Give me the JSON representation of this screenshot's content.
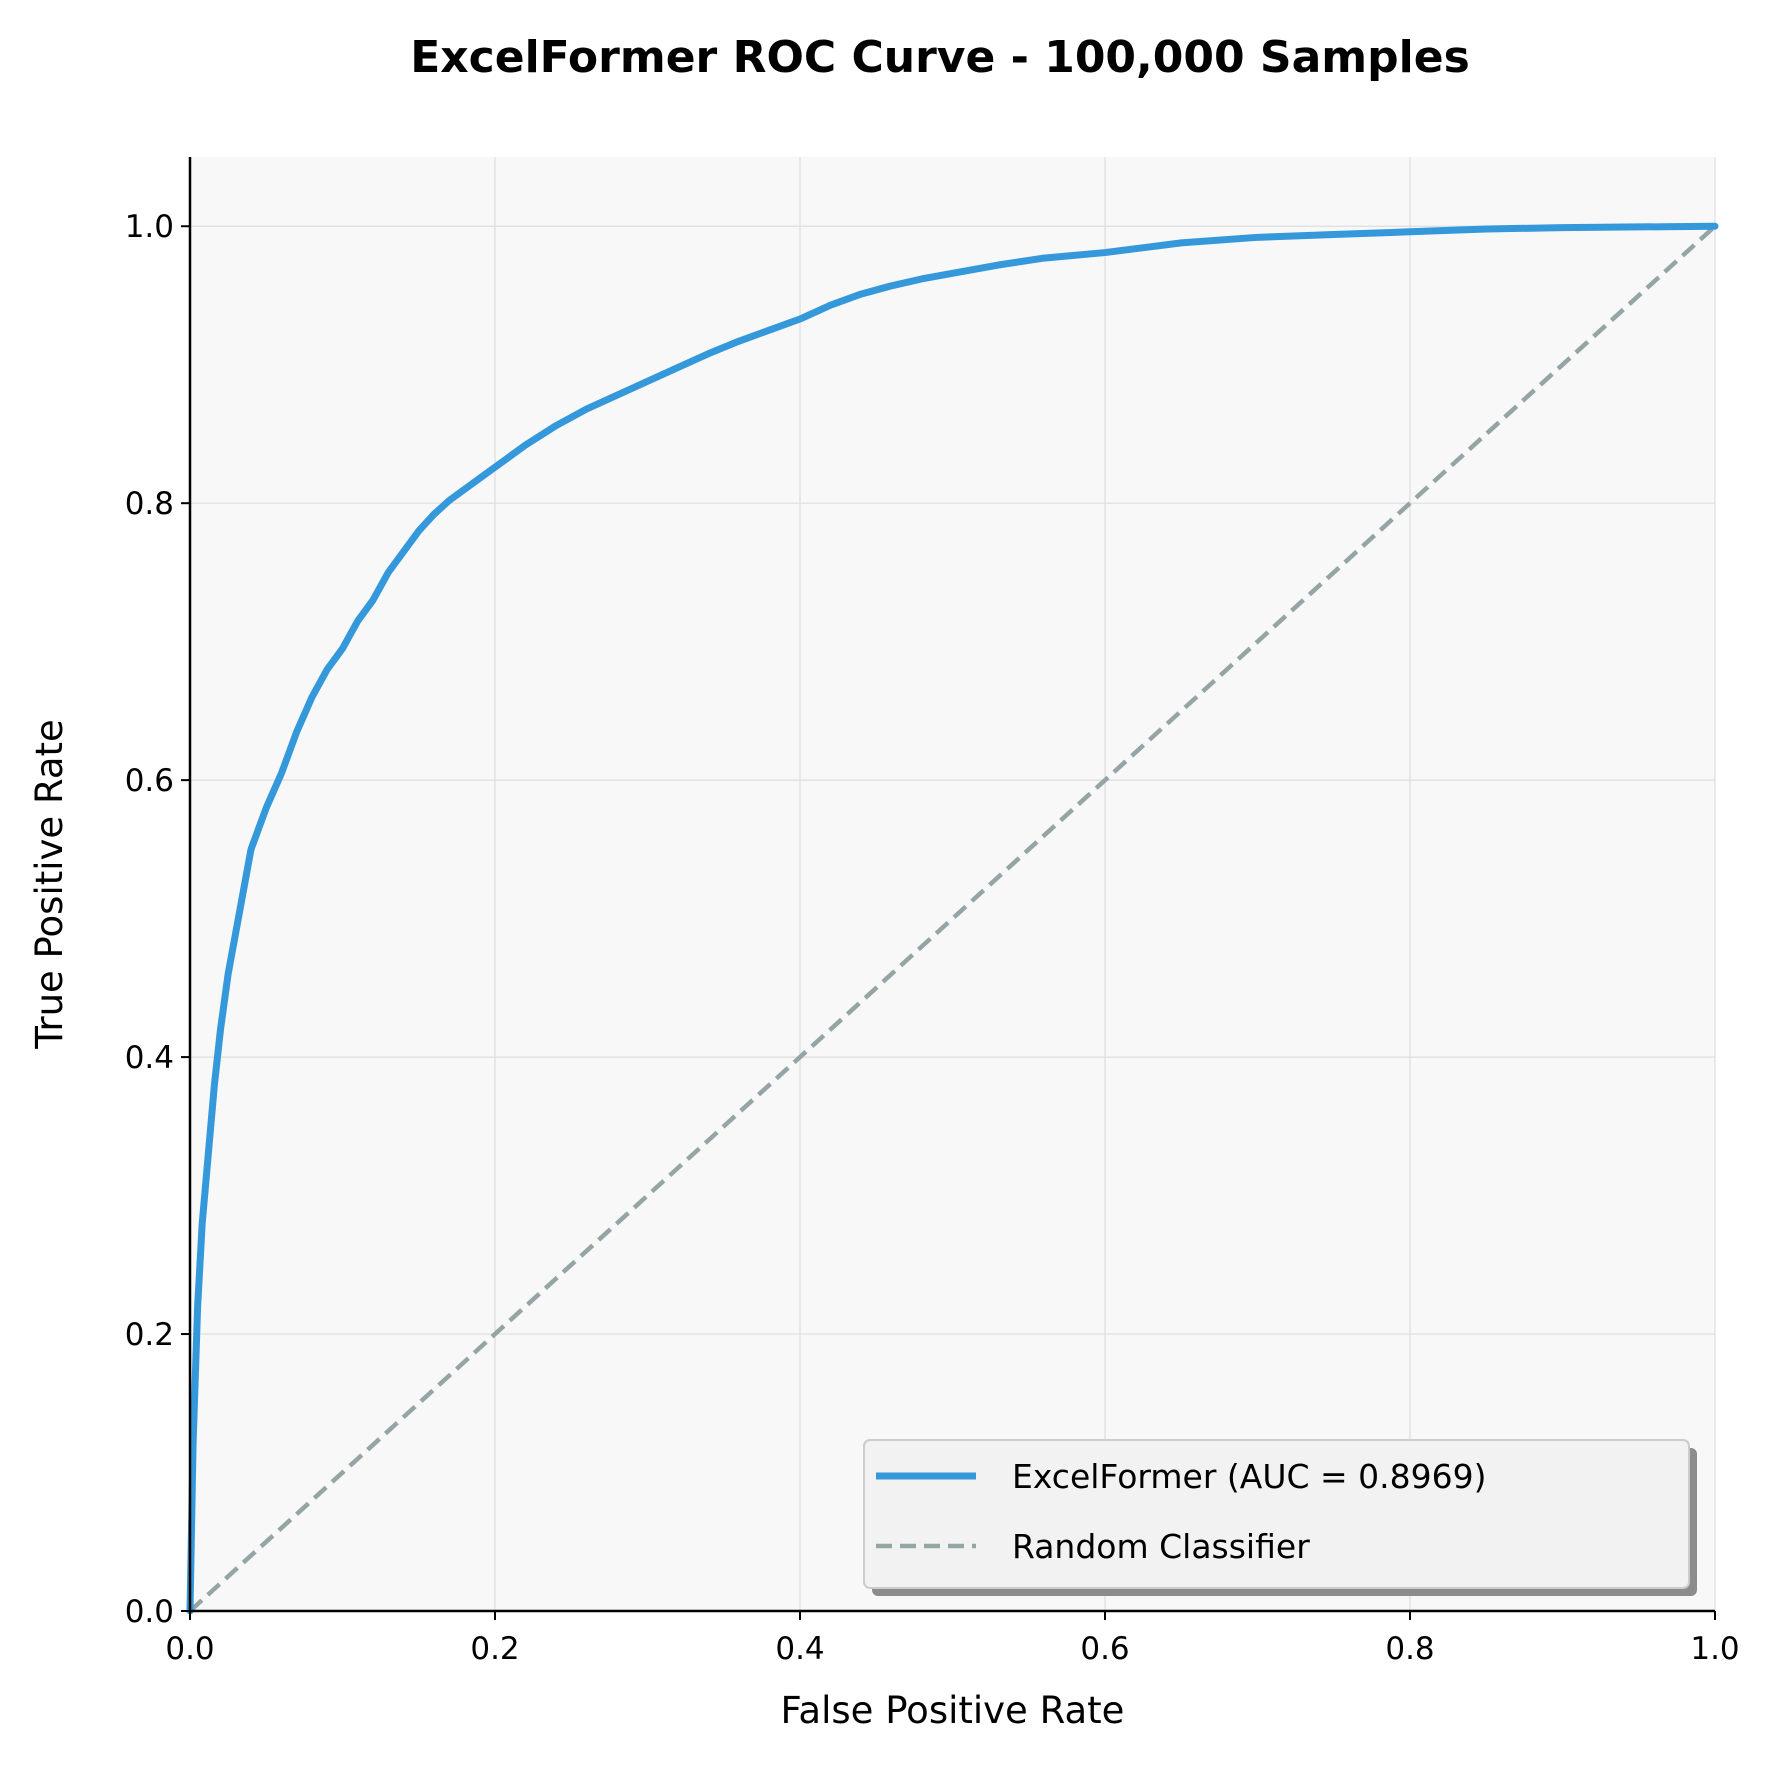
{
  "chart_data": {
    "type": "line",
    "title": "ExcelFormer ROC Curve - 100,000 Samples",
    "xlabel": "False Positive Rate",
    "ylabel": "True Positive Rate",
    "xlim": [
      0,
      1
    ],
    "ylim": [
      0,
      1.05
    ],
    "xticks": [
      0,
      0.2,
      0.4,
      0.6,
      0.8,
      1.0
    ],
    "xtick_labels": [
      "0.0",
      "0.2",
      "0.4",
      "0.6",
      "0.8",
      "1.0"
    ],
    "yticks": [
      0,
      0.2,
      0.4,
      0.6,
      0.8,
      1.0
    ],
    "ytick_labels": [
      "0.0",
      "0.2",
      "0.4",
      "0.6",
      "0.8",
      "1.0"
    ],
    "grid": true,
    "legend_position": "lower-right",
    "series": [
      {
        "name": "ExcelFormer (AUC = 0.8969)",
        "color": "#3498db",
        "style": "solid",
        "x": [
          0,
          0.002,
          0.005,
          0.008,
          0.012,
          0.016,
          0.02,
          0.025,
          0.03,
          0.035,
          0.04,
          0.05,
          0.06,
          0.07,
          0.08,
          0.09,
          0.1,
          0.11,
          0.12,
          0.13,
          0.14,
          0.15,
          0.16,
          0.17,
          0.18,
          0.2,
          0.22,
          0.24,
          0.26,
          0.28,
          0.3,
          0.32,
          0.34,
          0.36,
          0.38,
          0.4,
          0.42,
          0.44,
          0.46,
          0.48,
          0.5,
          0.53,
          0.56,
          0.6,
          0.65,
          0.7,
          0.75,
          0.8,
          0.85,
          0.9,
          0.95,
          1.0
        ],
        "y": [
          0,
          0.12,
          0.22,
          0.28,
          0.33,
          0.38,
          0.42,
          0.46,
          0.49,
          0.52,
          0.55,
          0.58,
          0.605,
          0.635,
          0.66,
          0.68,
          0.695,
          0.715,
          0.73,
          0.75,
          0.765,
          0.78,
          0.792,
          0.802,
          0.81,
          0.826,
          0.842,
          0.856,
          0.868,
          0.878,
          0.888,
          0.898,
          0.908,
          0.917,
          0.925,
          0.933,
          0.943,
          0.951,
          0.957,
          0.962,
          0.966,
          0.972,
          0.977,
          0.981,
          0.988,
          0.992,
          0.994,
          0.996,
          0.998,
          0.999,
          0.9995,
          1.0
        ]
      },
      {
        "name": "Random Classifier",
        "color": "#95a5a6",
        "style": "dashed",
        "x": [
          0,
          1
        ],
        "y": [
          0,
          1
        ]
      }
    ]
  }
}
